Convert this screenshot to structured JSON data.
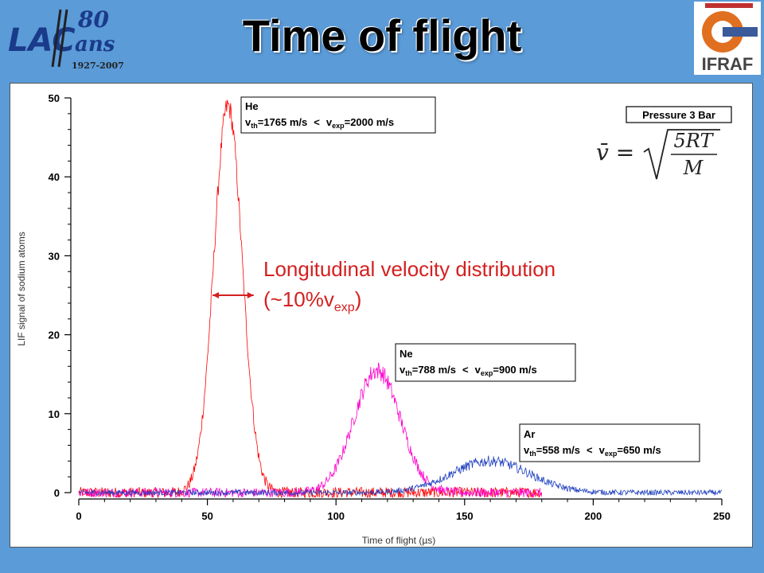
{
  "header": {
    "title": "Time of flight",
    "logo_left": {
      "mark": "LAC",
      "number": "80",
      "word": "ans",
      "years": "1927-2007"
    },
    "logo_right": {
      "text": "IFRAF"
    }
  },
  "chart_data": {
    "type": "line",
    "title": "",
    "xlabel": "Time of flight (µs)",
    "ylabel": "LIF signal of sodium atoms",
    "xlim": [
      0,
      250
    ],
    "ylim": [
      0,
      50
    ],
    "xticks": [
      "0",
      "50",
      "100",
      "150",
      "200",
      "250"
    ],
    "yticks": [
      "0",
      "10",
      "20",
      "30",
      "40",
      "50"
    ],
    "grid": false,
    "series": [
      {
        "name": "He",
        "color": "#ff0000",
        "x_range": [
          0,
          180
        ],
        "peak_x": 58,
        "peak_y": 49,
        "width": 5.5,
        "noise": 0.7,
        "label": {
          "title": "He",
          "vth_sym": "v",
          "vth_sub": "th",
          "vth_val": "=1765 m/s",
          "lt": "<",
          "vexp_sym": "v",
          "vexp_sub": "exp",
          "vexp_val": "=2000 m/s"
        }
      },
      {
        "name": "Ne",
        "color": "#ff00cc",
        "x_range": [
          0,
          180
        ],
        "peak_x": 116,
        "peak_y": 15.5,
        "width": 9,
        "noise": 0.6,
        "label": {
          "title": "Ne",
          "vth_sym": "v",
          "vth_sub": "th",
          "vth_val": "=788 m/s",
          "lt": "<",
          "vexp_sym": "v",
          "vexp_sub": "exp",
          "vexp_val": "=900 m/s"
        }
      },
      {
        "name": "Ar",
        "color": "#1f3fbf",
        "x_range": [
          0,
          250
        ],
        "peak_x": 160,
        "peak_y": 4,
        "width": 15,
        "noise": 0.35,
        "label": {
          "title": "Ar",
          "vth_sym": "v",
          "vth_sub": "th",
          "vth_val": "=558 m/s",
          "lt": "<",
          "vexp_sym": "v",
          "vexp_sub": "exp",
          "vexp_val": "=650 m/s"
        }
      }
    ],
    "pressure_label": "Pressure 3 Bar",
    "formula": {
      "lhs": "v̄ =",
      "numerator": "5RT",
      "denominator": "M"
    },
    "annotation": {
      "line1": "Longitudinal velocity distribution",
      "line2_pre": "(~10%v",
      "line2_sub": "exp",
      "line2_post": ")",
      "arrow_x": [
        52,
        68
      ],
      "arrow_y": 25
    }
  }
}
